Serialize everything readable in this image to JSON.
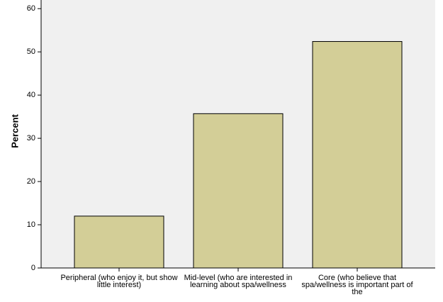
{
  "chart_data": {
    "type": "bar",
    "y_label": "Percent",
    "categories": [
      "Peripheral (who enjoy it, but show little interest)",
      "Mid-level (who are interested in learning about spa/wellness",
      "Core (who believe that spa/wellness is important part of the"
    ],
    "values": [
      12,
      35.7,
      52.4
    ],
    "color": "#d3ce97",
    "ylim": [
      0,
      62
    ],
    "yticks": [
      0,
      10,
      20,
      30,
      40,
      50,
      60
    ],
    "grid": false
  }
}
